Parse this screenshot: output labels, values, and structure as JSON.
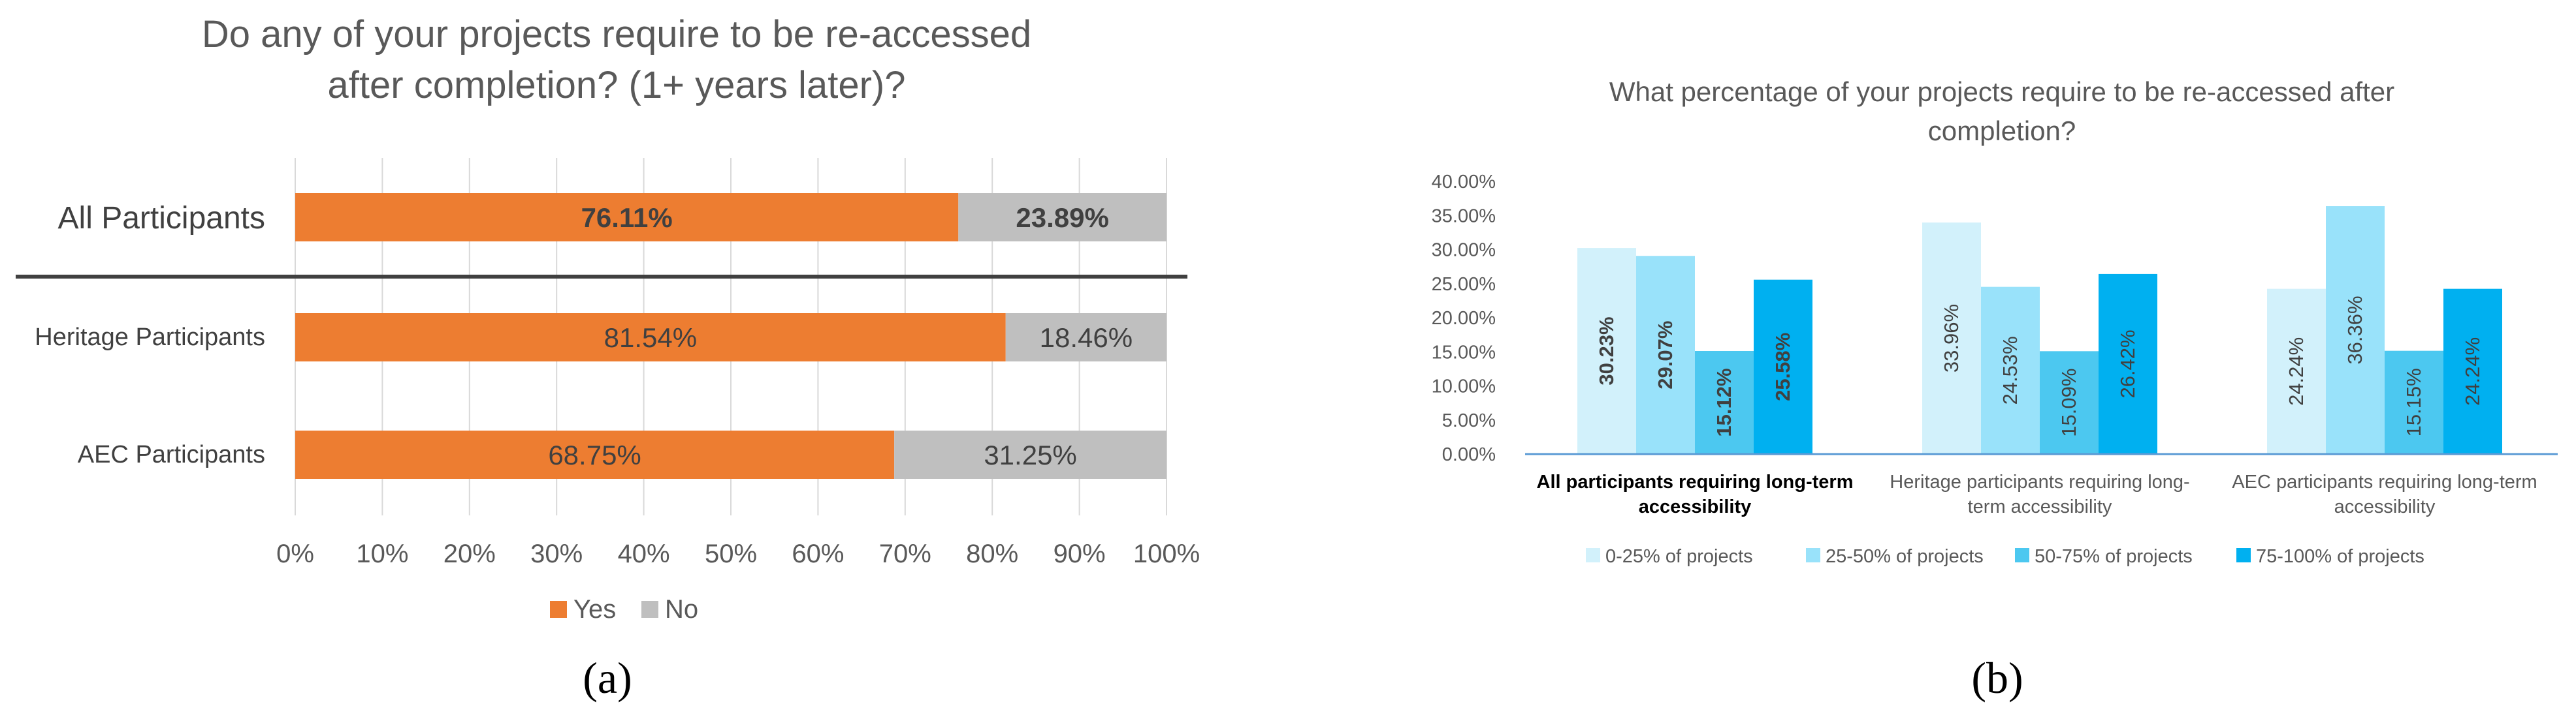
{
  "colors": {
    "yes": "#ED7D31",
    "no": "#BFBFBF",
    "grid": "#D9D9D9",
    "title_text": "#595959",
    "axis_text": "#595959",
    "label_text": "#404040",
    "divider": "#404040",
    "b_series": [
      "#D2F1FB",
      "#99E2FA",
      "#4CC8F0",
      "#00B0F0"
    ],
    "b_axis": "#5B9BD5"
  },
  "chart_data": [
    {
      "id": "a",
      "type": "bar",
      "orientation": "horizontal",
      "stacked": true,
      "percent": true,
      "title_lines": [
        "Do any of your projects require to be re-accessed",
        "after completion? (1+ years later)?"
      ],
      "categories": [
        "All Participants",
        "Heritage  Participants",
        "AEC Participants"
      ],
      "series": [
        {
          "name": "Yes",
          "values": [
            76.11,
            81.54,
            68.75
          ],
          "labels": [
            "76.11%",
            "81.54%",
            "68.75%"
          ]
        },
        {
          "name": "No",
          "values": [
            23.89,
            18.46,
            31.25
          ],
          "labels": [
            "23.89%",
            "18.46%",
            "31.25%"
          ]
        }
      ],
      "bold_rows": [
        0
      ],
      "xlim": [
        0,
        100
      ],
      "x_ticks": [
        "0%",
        "10%",
        "20%",
        "30%",
        "40%",
        "50%",
        "60%",
        "70%",
        "80%",
        "90%",
        "100%"
      ],
      "grid": true,
      "legend_position": "bottom",
      "caption": "(a)"
    },
    {
      "id": "b",
      "type": "bar",
      "orientation": "vertical",
      "title_lines": [
        "What percentage of your projects require to be re-accessed after",
        "completion?"
      ],
      "groups": [
        [
          "All participants requiring long-term",
          "accessibility"
        ],
        [
          "Heritage participants requiring long-",
          "term accessibility"
        ],
        [
          "AEC participants requiring long-term",
          "accessibility"
        ]
      ],
      "bold_groups": [
        0
      ],
      "series": [
        {
          "name": "0-25% of projects",
          "values": [
            30.23,
            33.96,
            24.24
          ],
          "labels": [
            "30.23%",
            "33.96%",
            "24.24%"
          ]
        },
        {
          "name": "25-50% of projects",
          "values": [
            29.07,
            24.53,
            36.36
          ],
          "labels": [
            "29.07%",
            "24.53%",
            "36.36%"
          ]
        },
        {
          "name": "50-75% of projects",
          "values": [
            15.12,
            15.09,
            15.15
          ],
          "labels": [
            "15.12%",
            "15.09%",
            "15.15%"
          ]
        },
        {
          "name": "75-100% of projects",
          "values": [
            25.58,
            26.42,
            24.24
          ],
          "labels": [
            "25.58%",
            "26.42%",
            "24.24%"
          ]
        }
      ],
      "ylim": [
        0,
        40
      ],
      "y_ticks": [
        "0.00%",
        "5.00%",
        "10.00%",
        "15.00%",
        "20.00%",
        "25.00%",
        "30.00%",
        "35.00%",
        "40.00%"
      ],
      "grid": false,
      "legend_position": "bottom",
      "caption": "(b)"
    }
  ]
}
